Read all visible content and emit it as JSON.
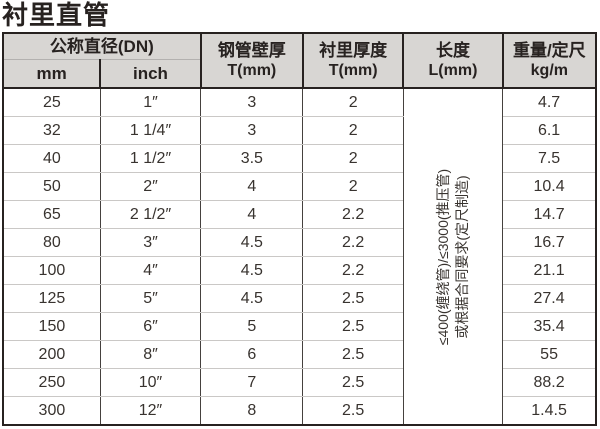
{
  "title": "衬里直管",
  "table": {
    "headers": {
      "diameter": "公称直径(DN)",
      "mm": "mm",
      "inch": "inch",
      "wall_line1": "钢管壁厚",
      "wall_line2": "T(mm)",
      "lining_line1": "衬里厚度",
      "lining_line2": "T(mm)",
      "length_line1": "长度",
      "length_line2": "L(mm)",
      "weight_line1": "重量/定尺",
      "weight_line2": "kg/m"
    },
    "length_note_line1": "≤400(缠绕管)/≤3000(推压管)",
    "length_note_line2": "或根据合同要求(定尺制造)",
    "rows": [
      {
        "mm": "25",
        "inch": "1″",
        "wall": "3",
        "lining": "2",
        "weight": "4.7"
      },
      {
        "mm": "32",
        "inch": "1 1/4″",
        "wall": "3",
        "lining": "2",
        "weight": "6.1"
      },
      {
        "mm": "40",
        "inch": "1 1/2″",
        "wall": "3.5",
        "lining": "2",
        "weight": "7.5"
      },
      {
        "mm": "50",
        "inch": "2″",
        "wall": "4",
        "lining": "2",
        "weight": "10.4"
      },
      {
        "mm": "65",
        "inch": "2 1/2″",
        "wall": "4",
        "lining": "2.2",
        "weight": "14.7"
      },
      {
        "mm": "80",
        "inch": "3″",
        "wall": "4.5",
        "lining": "2.2",
        "weight": "16.7"
      },
      {
        "mm": "100",
        "inch": "4″",
        "wall": "4.5",
        "lining": "2.2",
        "weight": "21.1"
      },
      {
        "mm": "125",
        "inch": "5″",
        "wall": "4.5",
        "lining": "2.5",
        "weight": "27.4"
      },
      {
        "mm": "150",
        "inch": "6″",
        "wall": "5",
        "lining": "2.5",
        "weight": "35.4"
      },
      {
        "mm": "200",
        "inch": "8″",
        "wall": "6",
        "lining": "2.5",
        "weight": "55"
      },
      {
        "mm": "250",
        "inch": "10″",
        "wall": "7",
        "lining": "2.5",
        "weight": "88.2"
      },
      {
        "mm": "300",
        "inch": "12″",
        "wall": "8",
        "lining": "2.5",
        "weight": "1.4.5"
      }
    ]
  }
}
